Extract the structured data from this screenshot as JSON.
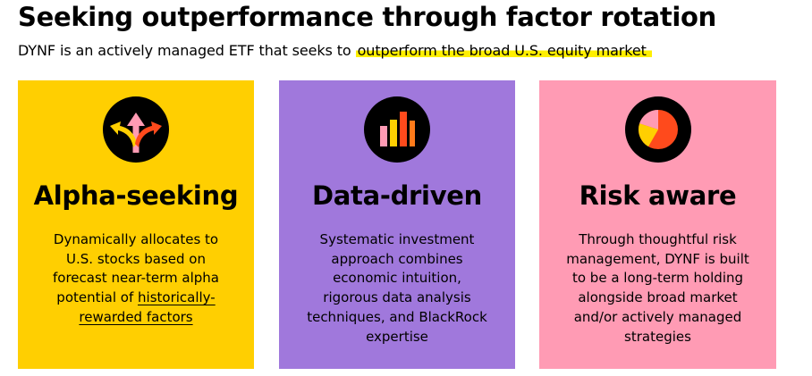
{
  "header": {
    "title": "Seeking outperformance through factor rotation",
    "subtitle_prefix": "DYNF is an actively managed ETF that seeks to ",
    "subtitle_highlight": "outperform the broad U.S. equity market"
  },
  "cards": [
    {
      "title": "Alpha-seeking",
      "icon": "diverging-arrows-icon",
      "background": "#ffcf01",
      "body_lines": [
        "Dynamically allocates to",
        "U.S. stocks based on",
        "forecast near-term alpha",
        "potential of "
      ],
      "body_link_1": "historically-",
      "body_link_2": "rewarded factors"
    },
    {
      "title": "Data-driven",
      "icon": "bar-chart-icon",
      "background": "#a078dc",
      "body_lines": [
        "Systematic investment",
        "approach combines",
        "economic intuition,",
        "rigorous data analysis",
        "techniques, and BlackRock",
        "expertise"
      ]
    },
    {
      "title": "Risk aware",
      "icon": "pie-chart-icon",
      "background": "#ff9bb4",
      "body_lines": [
        "Through thoughtful risk",
        "management, DYNF is built",
        "to be a long-term holding",
        "alongside broad market",
        "and/or actively managed",
        "strategies"
      ]
    }
  ],
  "colors": {
    "highlight": "#ffef00",
    "icon_pink": "#ff9bb4",
    "icon_red": "#ff4a1c",
    "icon_yellow": "#ffcf01",
    "icon_orange": "#ff7a1a"
  }
}
